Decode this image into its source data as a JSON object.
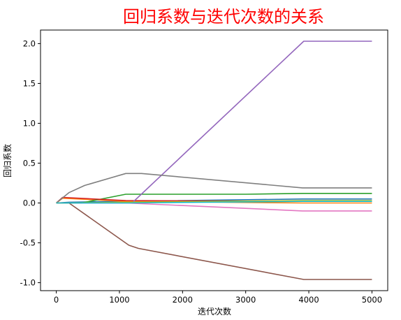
{
  "chart_data": {
    "type": "line",
    "title": "回归系数与迭代次数的关系",
    "title_color": "#ff0000",
    "xlabel": "迭代次数",
    "ylabel": "回归系数",
    "xlim": [
      -250,
      5250
    ],
    "ylim": [
      -1.1,
      2.17
    ],
    "xticks": [
      0,
      1000,
      2000,
      3000,
      4000,
      5000
    ],
    "xtick_labels": [
      "0",
      "1000",
      "2000",
      "3000",
      "4000",
      "5000"
    ],
    "yticks": [
      -1.0,
      -0.5,
      0.0,
      0.5,
      1.0,
      1.5,
      2.0
    ],
    "ytick_labels": [
      "-1.0",
      "-0.5",
      "0.0",
      "0.5",
      "1.0",
      "1.5",
      "2.0"
    ],
    "grid": false,
    "legend": "none",
    "series": [
      {
        "color": "#1f77b4",
        "points": [
          [
            0,
            0
          ],
          [
            200,
            0.01
          ],
          [
            1100,
            0.02
          ],
          [
            3900,
            0.05
          ],
          [
            5000,
            0.05
          ]
        ]
      },
      {
        "color": "#ff7f0e",
        "points": [
          [
            0,
            0
          ],
          [
            100,
            0.06
          ],
          [
            1100,
            0.02
          ],
          [
            3900,
            0.0
          ],
          [
            5000,
            0.0
          ]
        ]
      },
      {
        "color": "#2ca02c",
        "points": [
          [
            0,
            0
          ],
          [
            400,
            0.0
          ],
          [
            1100,
            0.11
          ],
          [
            3000,
            0.11
          ],
          [
            3900,
            0.12
          ],
          [
            5000,
            0.12
          ]
        ]
      },
      {
        "color": "#d62728",
        "points": [
          [
            0,
            0
          ],
          [
            100,
            0.07
          ],
          [
            1100,
            0.03
          ],
          [
            3900,
            0.02
          ],
          [
            5000,
            0.02
          ]
        ]
      },
      {
        "color": "#9467bd",
        "points": [
          [
            0,
            0
          ],
          [
            1200,
            0.0
          ],
          [
            3920,
            2.03
          ],
          [
            5000,
            2.03
          ]
        ]
      },
      {
        "color": "#8c564b",
        "points": [
          [
            0,
            0
          ],
          [
            200,
            0.0
          ],
          [
            1150,
            -0.53
          ],
          [
            1300,
            -0.57
          ],
          [
            3920,
            -0.96
          ],
          [
            5000,
            -0.96
          ]
        ]
      },
      {
        "color": "#e377c2",
        "points": [
          [
            0,
            0
          ],
          [
            1100,
            0.0
          ],
          [
            3900,
            -0.1
          ],
          [
            5000,
            -0.1
          ]
        ]
      },
      {
        "color": "#7f7f7f",
        "points": [
          [
            0,
            0
          ],
          [
            200,
            0.13
          ],
          [
            450,
            0.22
          ],
          [
            1100,
            0.37
          ],
          [
            1350,
            0.37
          ],
          [
            3900,
            0.19
          ],
          [
            5000,
            0.19
          ]
        ]
      },
      {
        "color": "#bcbd22",
        "points": [
          [
            0,
            0
          ],
          [
            200,
            0.0
          ],
          [
            1100,
            0.01
          ],
          [
            3900,
            0.03
          ],
          [
            5000,
            0.03
          ]
        ]
      },
      {
        "color": "#17becf",
        "points": [
          [
            0,
            0
          ],
          [
            1100,
            0.0
          ],
          [
            3900,
            0.02
          ],
          [
            5000,
            0.02
          ]
        ]
      }
    ]
  }
}
